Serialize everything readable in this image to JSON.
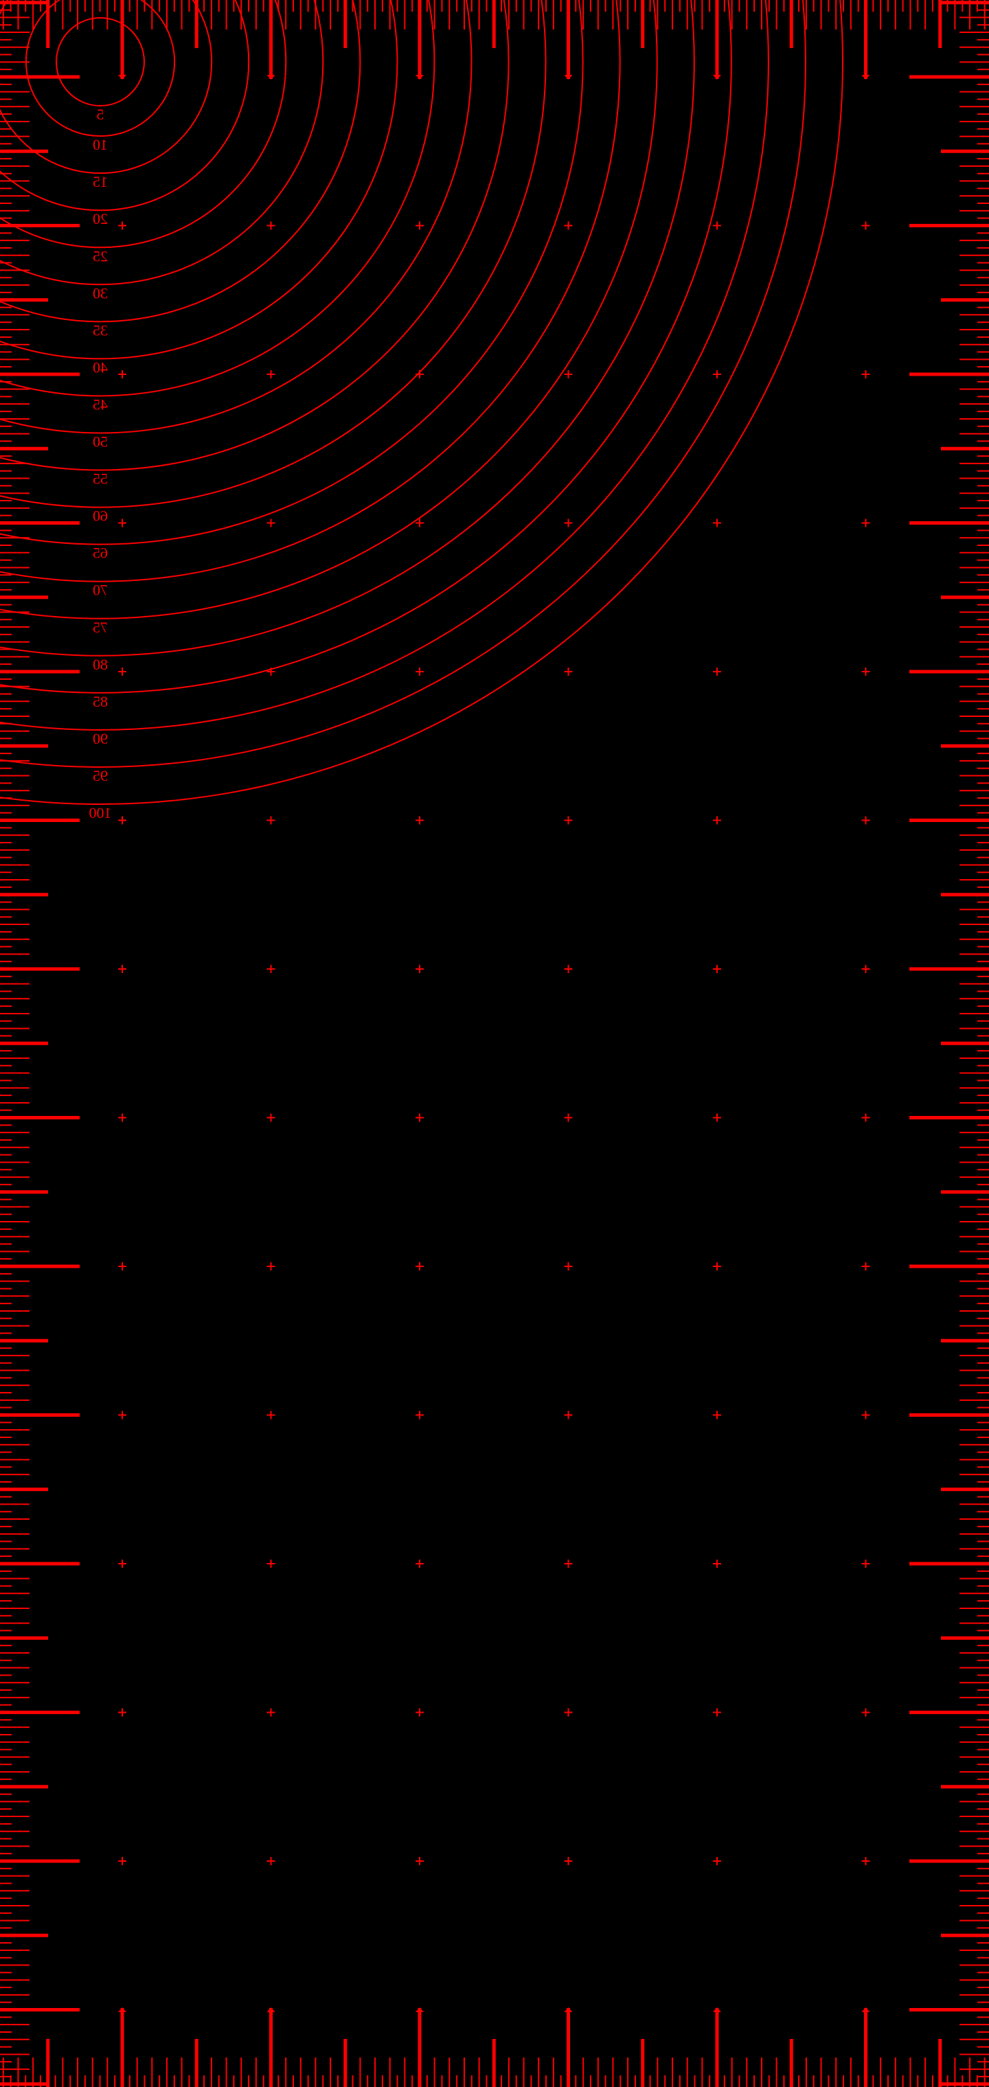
{
  "pattern": {
    "background": "#000000",
    "line_color": "#ff0000"
  },
  "circles": {
    "labels": [
      "5",
      "10",
      "15",
      "20",
      "25",
      "30",
      "35",
      "40",
      "45",
      "50",
      "55",
      "60",
      "65",
      "70",
      "75",
      "80",
      "85",
      "90",
      "95",
      "100"
    ],
    "values": [
      5,
      10,
      15,
      20,
      25,
      30,
      35,
      40,
      45,
      50,
      55,
      60,
      65,
      70,
      75,
      80,
      85,
      90,
      95,
      100
    ],
    "labels_mirrored": true
  }
}
